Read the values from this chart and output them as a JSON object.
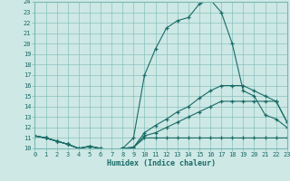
{
  "xlabel": "Humidex (Indice chaleur)",
  "xlim": [
    0,
    23
  ],
  "ylim": [
    10,
    24
  ],
  "xticks": [
    0,
    1,
    2,
    3,
    4,
    5,
    6,
    7,
    8,
    9,
    10,
    11,
    12,
    13,
    14,
    15,
    16,
    17,
    18,
    19,
    20,
    21,
    22,
    23
  ],
  "yticks": [
    10,
    11,
    12,
    13,
    14,
    15,
    16,
    17,
    18,
    19,
    20,
    21,
    22,
    23,
    24
  ],
  "bg_color": "#cde8e5",
  "grid_color": "#7ab8b4",
  "line_color": "#1a6b66",
  "lines": [
    {
      "x": [
        0,
        1,
        2,
        3,
        4,
        5,
        6,
        7,
        8,
        9,
        10,
        11,
        12,
        13,
        14,
        15,
        16,
        17,
        18,
        19,
        20,
        21,
        22,
        23
      ],
      "y": [
        11.2,
        11.0,
        10.7,
        10.4,
        10.0,
        10.2,
        10.0,
        9.8,
        10.0,
        10.1,
        11.0,
        11.0,
        11.0,
        11.0,
        11.0,
        11.0,
        11.0,
        11.0,
        11.0,
        11.0,
        11.0,
        11.0,
        11.0,
        11.0
      ]
    },
    {
      "x": [
        0,
        1,
        2,
        3,
        4,
        5,
        6,
        7,
        8,
        9,
        10,
        11,
        12,
        13,
        14,
        15,
        16,
        17,
        18,
        19,
        20,
        21,
        22,
        23
      ],
      "y": [
        11.2,
        11.0,
        10.7,
        10.4,
        10.0,
        10.2,
        10.0,
        9.8,
        10.0,
        10.1,
        11.2,
        11.5,
        12.0,
        12.5,
        13.0,
        13.5,
        14.0,
        14.5,
        14.5,
        14.5,
        14.5,
        14.5,
        14.5,
        12.5
      ]
    },
    {
      "x": [
        0,
        1,
        2,
        3,
        4,
        5,
        6,
        7,
        8,
        9,
        10,
        11,
        12,
        13,
        14,
        15,
        16,
        17,
        18,
        19,
        20,
        21,
        22,
        23
      ],
      "y": [
        11.2,
        11.0,
        10.7,
        10.4,
        10.0,
        10.2,
        10.0,
        9.8,
        10.0,
        10.1,
        11.5,
        12.2,
        12.8,
        13.5,
        14.0,
        14.8,
        15.5,
        16.0,
        16.0,
        16.0,
        15.5,
        15.0,
        14.5,
        12.5
      ]
    },
    {
      "x": [
        0,
        1,
        2,
        3,
        4,
        5,
        6,
        7,
        8,
        9,
        10,
        11,
        12,
        13,
        14,
        15,
        16,
        17,
        18,
        19,
        20,
        21,
        22,
        23
      ],
      "y": [
        11.2,
        11.0,
        10.7,
        10.4,
        10.0,
        10.2,
        10.0,
        9.8,
        10.0,
        11.0,
        17.0,
        19.5,
        21.5,
        22.2,
        22.5,
        23.8,
        24.2,
        23.0,
        20.0,
        15.5,
        15.0,
        13.2,
        12.8,
        12.0
      ]
    }
  ]
}
